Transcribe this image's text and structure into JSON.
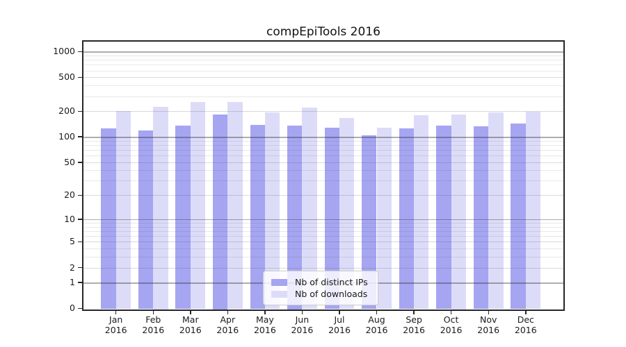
{
  "title": "compEpiTools 2016",
  "legend": {
    "items": [
      {
        "label": "Nb of distinct IPs",
        "color": "#a5a5f2"
      },
      {
        "label": "Nb of downloads",
        "color": "#dcdcf9"
      }
    ]
  },
  "chart_data": {
    "type": "bar",
    "title": "compEpiTools 2016",
    "categories": [
      "Jan 2016",
      "Feb 2016",
      "Mar 2016",
      "Apr 2016",
      "May 2016",
      "Jun 2016",
      "Jul 2016",
      "Aug 2016",
      "Sep 2016",
      "Oct 2016",
      "Nov 2016",
      "Dec 2016"
    ],
    "series": [
      {
        "name": "Nb of distinct IPs",
        "color": "#a5a5f2",
        "values": [
          125,
          118,
          136,
          185,
          139,
          137,
          129,
          104,
          126,
          135,
          132,
          143
        ]
      },
      {
        "name": "Nb of downloads",
        "color": "#dcdcf9",
        "values": [
          202,
          225,
          255,
          258,
          195,
          220,
          166,
          128,
          180,
          185,
          193,
          197
        ]
      }
    ],
    "yscale": "log10(1+x)",
    "ylim": [
      0,
      1300
    ],
    "yticks_labeled": [
      0,
      1,
      2,
      5,
      10,
      20,
      50,
      100,
      200,
      500,
      1000
    ],
    "yticks_major": [
      1,
      10,
      100,
      1000
    ],
    "yticks_minor_labeled": [
      2,
      5,
      20,
      50,
      200,
      500
    ],
    "gridlines_minor": [
      3,
      4,
      6,
      7,
      8,
      9,
      30,
      40,
      60,
      70,
      80,
      90,
      300,
      400,
      600,
      700,
      800,
      900
    ],
    "grid": true,
    "xlabel": "",
    "ylabel": "",
    "legend_position": "lower center"
  }
}
